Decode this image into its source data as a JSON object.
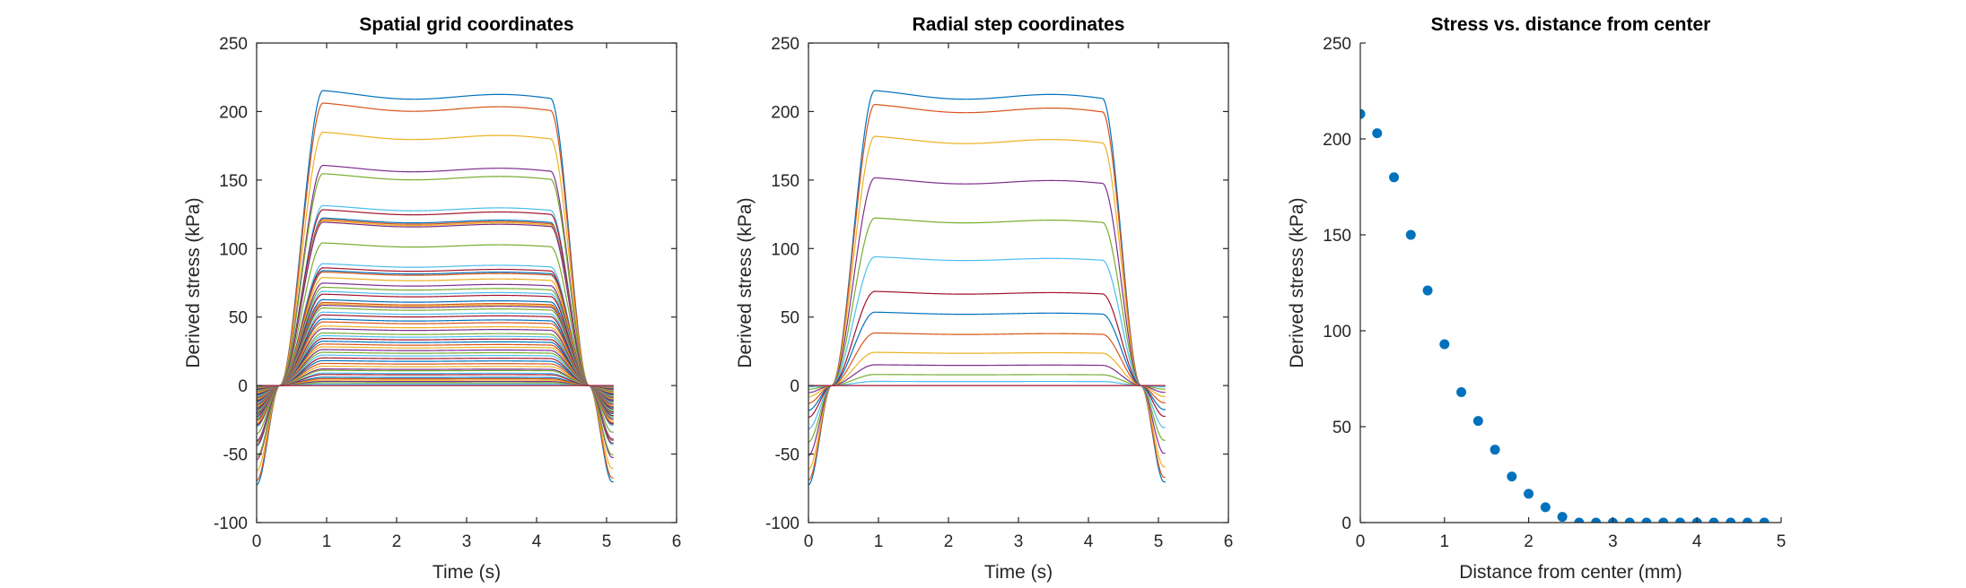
{
  "palette": [
    "#0072BD",
    "#D95319",
    "#EDB120",
    "#7E2F8E",
    "#77AC30",
    "#4DBEEE",
    "#A2142F"
  ],
  "chart_data": [
    {
      "type": "line",
      "title": "Spatial grid coordinates",
      "xlabel": "Time (s)",
      "ylabel": "Derived stress (kPa)",
      "xlim": [
        0,
        6
      ],
      "ylim": [
        -100,
        250
      ],
      "xticks": [
        0,
        1,
        2,
        3,
        4,
        5,
        6
      ],
      "yticks": [
        -100,
        -50,
        0,
        50,
        100,
        150,
        200,
        250
      ],
      "box": true,
      "grid": false,
      "plateau_levels": [
        213,
        204,
        183,
        159,
        153,
        130,
        127,
        121,
        120,
        119,
        118,
        103,
        88,
        85,
        83,
        82,
        78,
        74,
        71,
        68,
        66,
        62,
        60,
        59,
        58,
        56,
        53,
        51,
        48,
        46,
        43,
        41,
        38,
        36,
        34,
        32,
        30,
        28,
        26,
        24,
        22,
        20,
        18,
        16,
        14,
        12,
        11,
        9,
        8,
        6,
        5,
        4,
        3,
        2,
        1,
        0
      ]
    },
    {
      "type": "line",
      "title": "Radial step coordinates",
      "xlabel": "Time (s)",
      "ylabel": "Derived stress (kPa)",
      "xlim": [
        0,
        6
      ],
      "ylim": [
        -100,
        250
      ],
      "xticks": [
        0,
        1,
        2,
        3,
        4,
        5,
        6
      ],
      "yticks": [
        -100,
        -50,
        0,
        50,
        100,
        150,
        200,
        250
      ],
      "box": true,
      "grid": false,
      "plateau_levels": [
        213,
        203,
        180,
        150,
        121,
        93,
        68,
        53,
        38,
        24,
        15,
        8,
        3,
        0
      ]
    },
    {
      "type": "scatter",
      "title": "Stress vs. distance from center",
      "xlabel": "Distance from center (mm)",
      "ylabel": "Derived stress (kPa)",
      "xlim": [
        0,
        5
      ],
      "ylim": [
        0,
        250
      ],
      "xticks": [
        0,
        1,
        2,
        3,
        4,
        5
      ],
      "yticks": [
        0,
        50,
        100,
        150,
        200,
        250
      ],
      "box": false,
      "grid": false,
      "x": [
        0,
        0.2,
        0.4,
        0.6,
        0.8,
        1.0,
        1.2,
        1.4,
        1.6,
        1.8,
        2.0,
        2.2,
        2.4,
        2.6,
        2.8,
        3.0,
        3.2,
        3.4,
        3.6,
        3.8,
        4.0,
        4.2,
        4.4,
        4.6,
        4.8
      ],
      "y": [
        213,
        203,
        180,
        150,
        121,
        93,
        68,
        53,
        38,
        24,
        15,
        8,
        3,
        0,
        0,
        0,
        0,
        0,
        0,
        0,
        0,
        0,
        0,
        0,
        0
      ]
    }
  ]
}
